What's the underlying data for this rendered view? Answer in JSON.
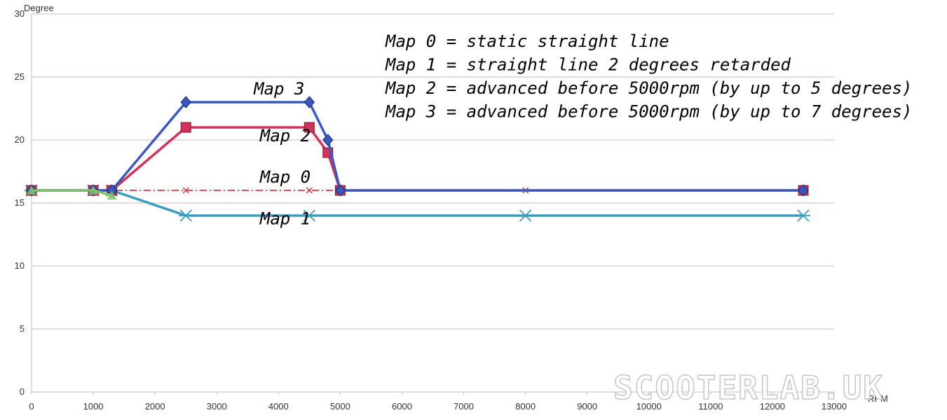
{
  "watermark": "SCOOTERLAB.UK",
  "chart_data": {
    "type": "line",
    "xlabel": "RPM",
    "ylabel": "Degree",
    "xlim": [
      0,
      13000
    ],
    "ylim": [
      0,
      30
    ],
    "x_ticks": [
      0,
      1000,
      2000,
      3000,
      4000,
      5000,
      6000,
      7000,
      8000,
      9000,
      10000,
      11000,
      12000,
      13000
    ],
    "y_ticks": [
      0,
      5,
      10,
      15,
      20,
      25,
      30
    ],
    "grid": "horizontal",
    "notes": [
      "Map 0 = static straight line",
      "Map 1 = straight line 2 degrees retarded",
      "Map 2 = advanced before 5000rpm (by up to 5 degrees)",
      "Map 3 = advanced before 5000rpm (by up to 7 degrees)"
    ],
    "series": [
      {
        "name": "Map 0",
        "color": "#d23a3a",
        "dash": "dashdot",
        "marker": "x",
        "label_at": [
          3700,
          16.6
        ],
        "points": [
          [
            0,
            16
          ],
          [
            1000,
            16
          ],
          [
            1300,
            16
          ],
          [
            2500,
            16
          ],
          [
            4500,
            16
          ],
          [
            5000,
            16
          ],
          [
            8000,
            16
          ],
          [
            12500,
            16
          ]
        ]
      },
      {
        "name": "Map 1",
        "color": "#3a9cc2",
        "dash": "solid",
        "marker": "asterisk",
        "label_at": [
          3700,
          13.3
        ],
        "points": [
          [
            0,
            16
          ],
          [
            1000,
            16
          ],
          [
            1300,
            16
          ],
          [
            2500,
            14
          ],
          [
            4500,
            14
          ],
          [
            8000,
            14
          ],
          [
            12500,
            14
          ]
        ]
      },
      {
        "name": "Map 2",
        "color": "#d2325a",
        "dash": "solid",
        "marker": "square",
        "label_at": [
          3700,
          19.9
        ],
        "points": [
          [
            0,
            16
          ],
          [
            1000,
            16
          ],
          [
            1300,
            16
          ],
          [
            2500,
            21
          ],
          [
            4500,
            21
          ],
          [
            4800,
            19
          ],
          [
            5000,
            16
          ],
          [
            12500,
            16
          ]
        ]
      },
      {
        "name": "Map 3",
        "color": "#3a58c2",
        "dash": "solid",
        "marker": "diamond",
        "label_at": [
          3600,
          23.6
        ],
        "points": [
          [
            0,
            16
          ],
          [
            1000,
            16
          ],
          [
            1300,
            16
          ],
          [
            2500,
            23
          ],
          [
            4500,
            23
          ],
          [
            4800,
            20
          ],
          [
            5000,
            16
          ],
          [
            12500,
            16
          ]
        ]
      },
      {
        "name": "",
        "color": "#7cc46a",
        "dash": "solid",
        "marker": "triangle",
        "points": [
          [
            0,
            16
          ],
          [
            1000,
            16
          ],
          [
            1300,
            15.6
          ]
        ]
      }
    ]
  }
}
